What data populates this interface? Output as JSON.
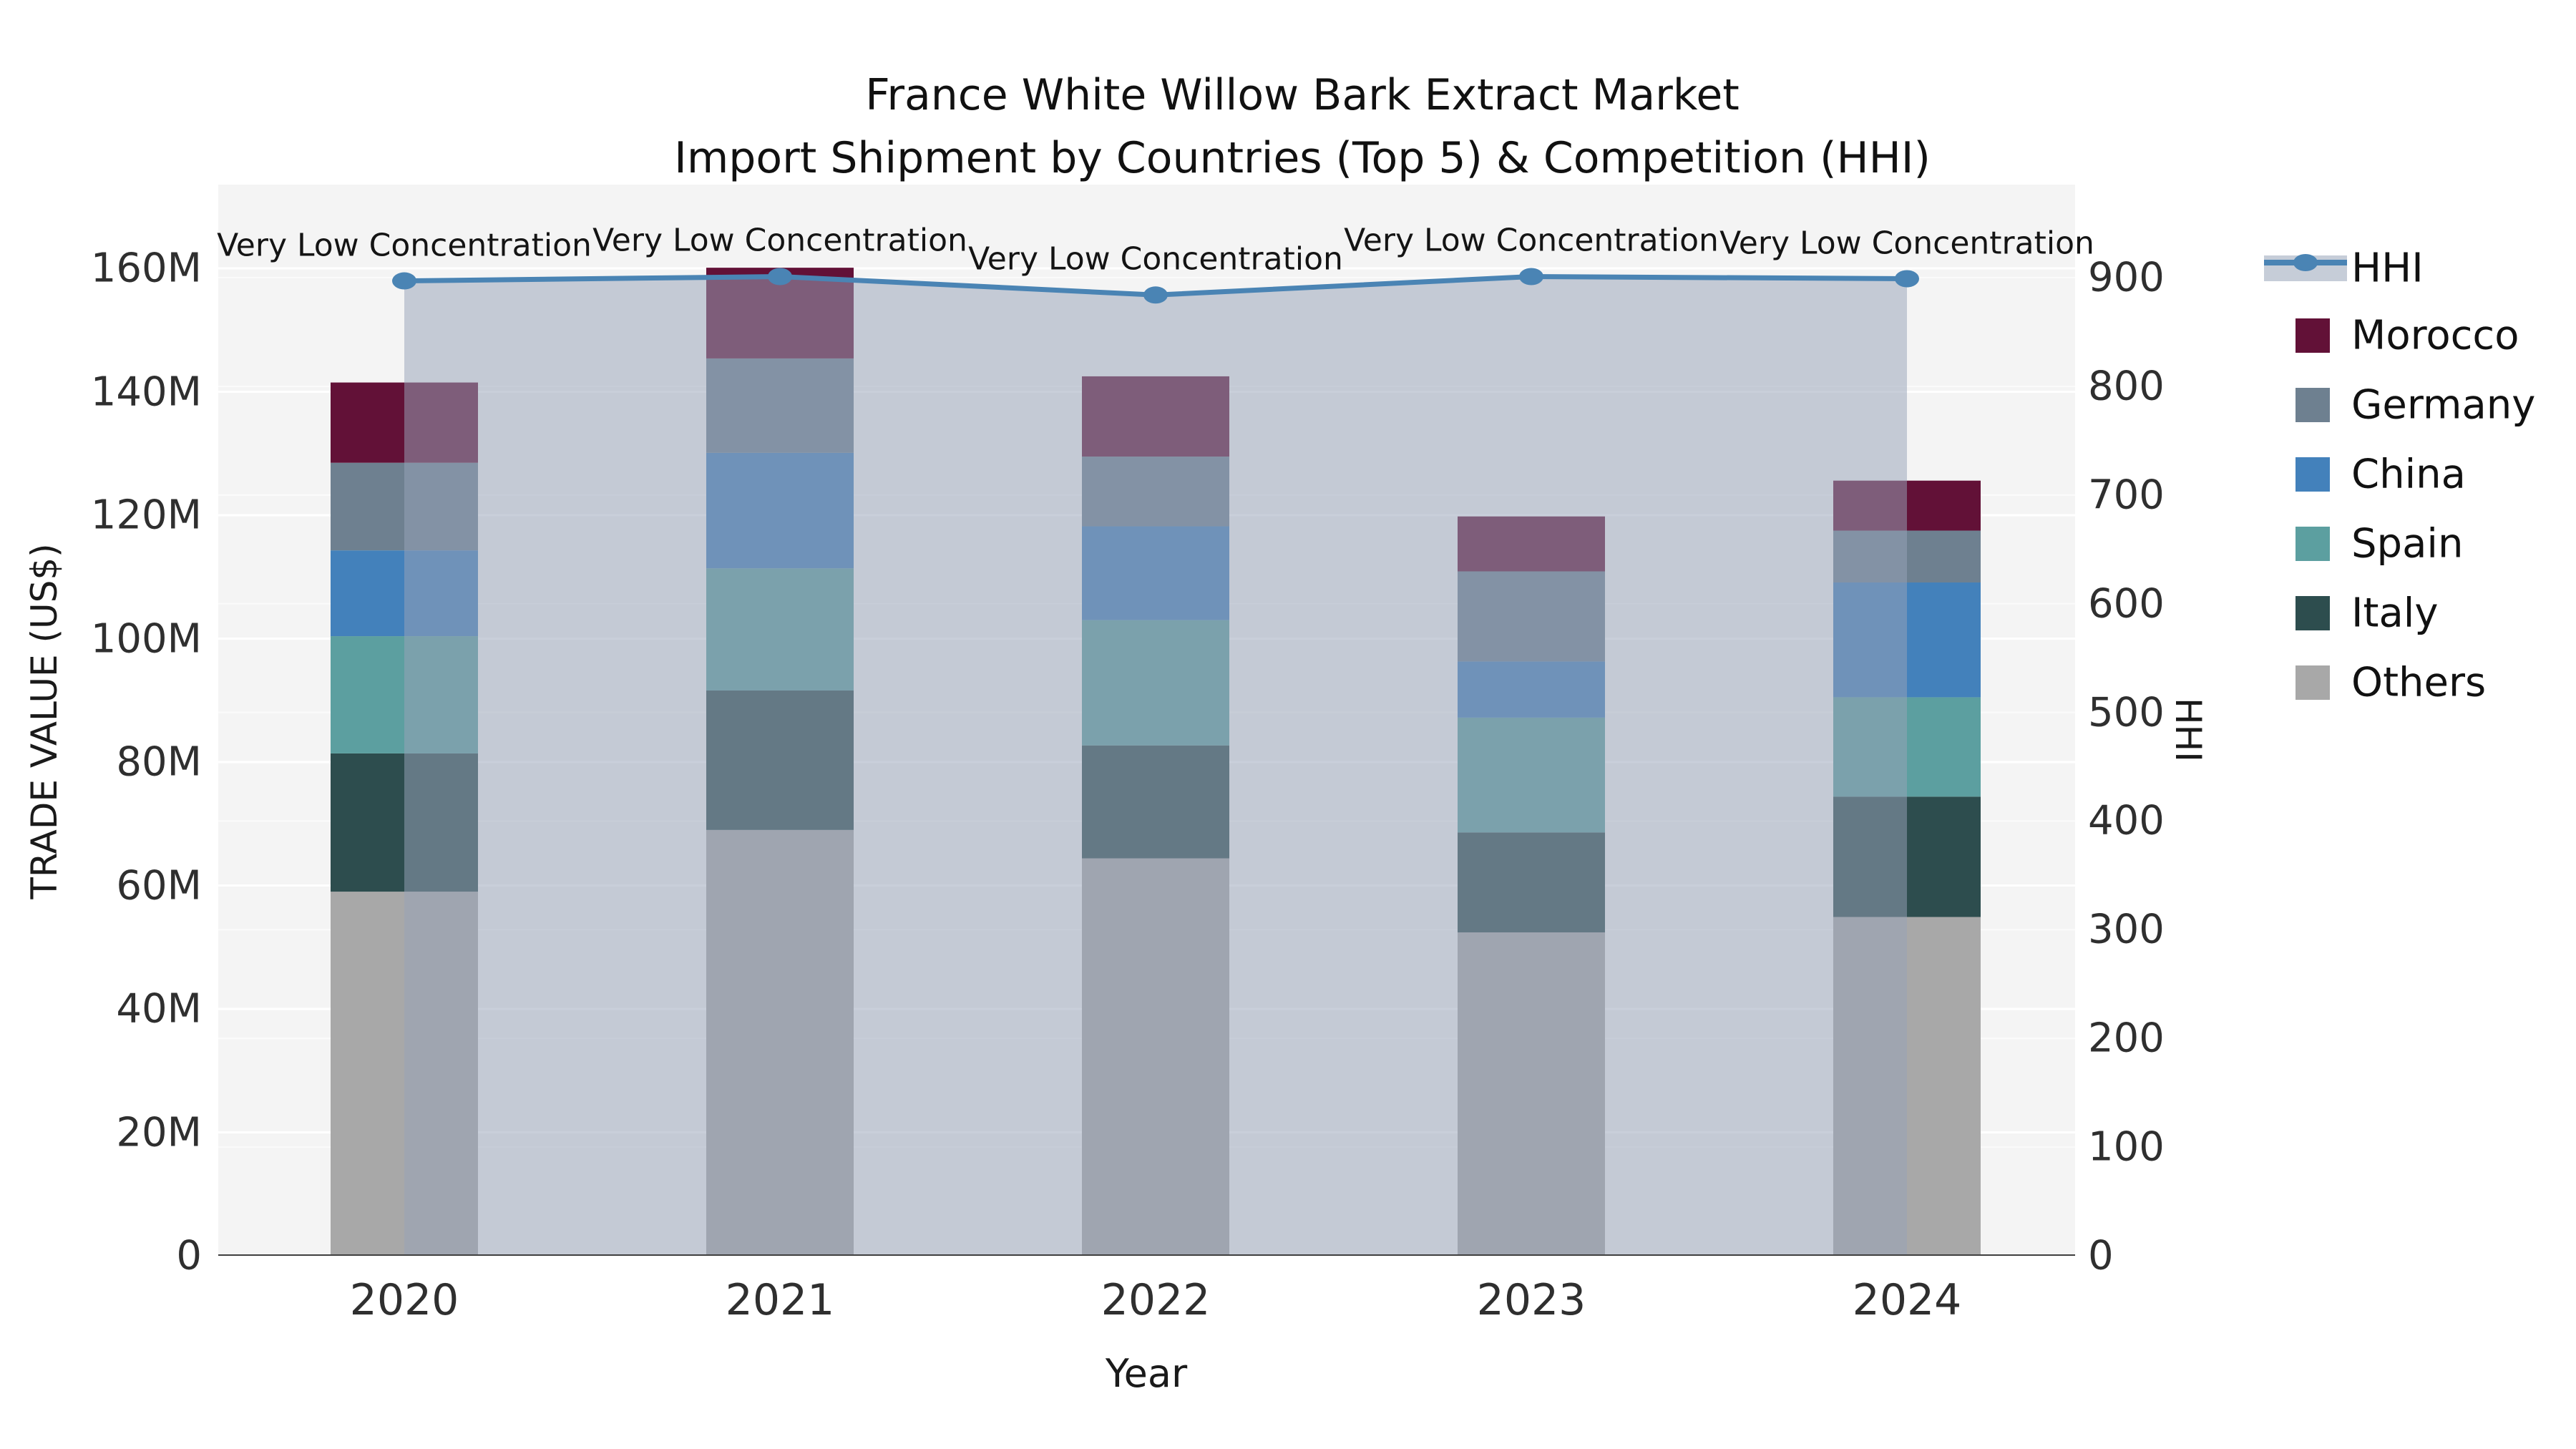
{
  "title": {
    "line1": "France White Willow Bark Extract Market",
    "line2": "Import Shipment by Countries (Top 5) & Competition (HHI)"
  },
  "axes": {
    "left": {
      "title": "TRADE VALUE (US$)",
      "tick_values": [
        0,
        20,
        40,
        60,
        80,
        100,
        120,
        140,
        160
      ],
      "tick_labels": [
        "0",
        "20M",
        "40M",
        "60M",
        "80M",
        "100M",
        "120M",
        "140M",
        "160M"
      ]
    },
    "right": {
      "title": "HHI",
      "tick_values": [
        0,
        100,
        200,
        300,
        400,
        500,
        600,
        700,
        800,
        900
      ],
      "tick_labels": [
        "0",
        "100",
        "200",
        "300",
        "400",
        "500",
        "600",
        "700",
        "800",
        "900"
      ]
    },
    "x": {
      "title": "Year",
      "tick_labels": [
        "2020",
        "2021",
        "2022",
        "2023",
        "2024"
      ]
    }
  },
  "legend": {
    "items": [
      {
        "name": "HHI",
        "type": "line"
      },
      {
        "name": "Morocco",
        "type": "swatch",
        "color": "#621137"
      },
      {
        "name": "Germany",
        "type": "swatch",
        "color": "#6e8090"
      },
      {
        "name": "China",
        "type": "swatch",
        "color": "#4381bb"
      },
      {
        "name": "Spain",
        "type": "swatch",
        "color": "#5c9fa0"
      },
      {
        "name": "Italy",
        "type": "swatch",
        "color": "#2d4d4e"
      },
      {
        "name": "Others",
        "type": "swatch",
        "color": "#a8a8a8"
      }
    ]
  },
  "annotations": [
    {
      "year": "2020",
      "text": "Very Low Concentration"
    },
    {
      "year": "2021",
      "text": "Very Low Concentration"
    },
    {
      "year": "2022",
      "text": "Very Low Concentration"
    },
    {
      "year": "2023",
      "text": "Very Low Concentration"
    },
    {
      "year": "2024",
      "text": "Very Low Concentration"
    }
  ],
  "chart_data": {
    "type": "bar",
    "subtype": "stacked-bar-with-line",
    "title": "France White Willow Bark Extract Market — Import Shipment by Countries (Top 5) & Competition (HHI)",
    "categories": [
      "2020",
      "2021",
      "2022",
      "2023",
      "2024"
    ],
    "value_unit": "M US$",
    "stack_order_bottom_to_top": [
      "Others",
      "Italy",
      "Spain",
      "China",
      "Germany",
      "Morocco"
    ],
    "series": [
      {
        "name": "Morocco",
        "color": "#621137",
        "values": [
          13.0,
          14.7,
          13.0,
          8.9,
          8.1
        ]
      },
      {
        "name": "Germany",
        "color": "#6e8090",
        "values": [
          14.2,
          15.3,
          11.3,
          14.6,
          8.4
        ]
      },
      {
        "name": "China",
        "color": "#4381bb",
        "values": [
          13.9,
          18.7,
          15.2,
          9.1,
          18.6
        ]
      },
      {
        "name": "Spain",
        "color": "#5c9fa0",
        "values": [
          19.0,
          19.8,
          20.3,
          18.6,
          16.1
        ]
      },
      {
        "name": "Italy",
        "color": "#2d4d4e",
        "values": [
          22.4,
          22.6,
          18.3,
          16.2,
          19.5
        ]
      },
      {
        "name": "Others",
        "color": "#a8a8a8",
        "values": [
          59.0,
          69.0,
          64.4,
          52.4,
          54.9
        ]
      }
    ],
    "bar_totals": [
      141.5,
      160.1,
      142.5,
      119.8,
      125.6
    ],
    "line_series": {
      "name": "HHI",
      "values": [
        897,
        901,
        884,
        901,
        899
      ],
      "color": "#4a84b4",
      "area_fill": "rgba(152,163,184,0.52)",
      "axis": "right"
    },
    "xlabel": "Year",
    "ylabel_left": "TRADE VALUE (US$)",
    "ylabel_right": "HHI",
    "ylim_left": [
      0,
      160
    ],
    "ylim_right": [
      0,
      900
    ],
    "grid": true,
    "plot_background": "#f4f4f4",
    "legend_position": "right"
  }
}
